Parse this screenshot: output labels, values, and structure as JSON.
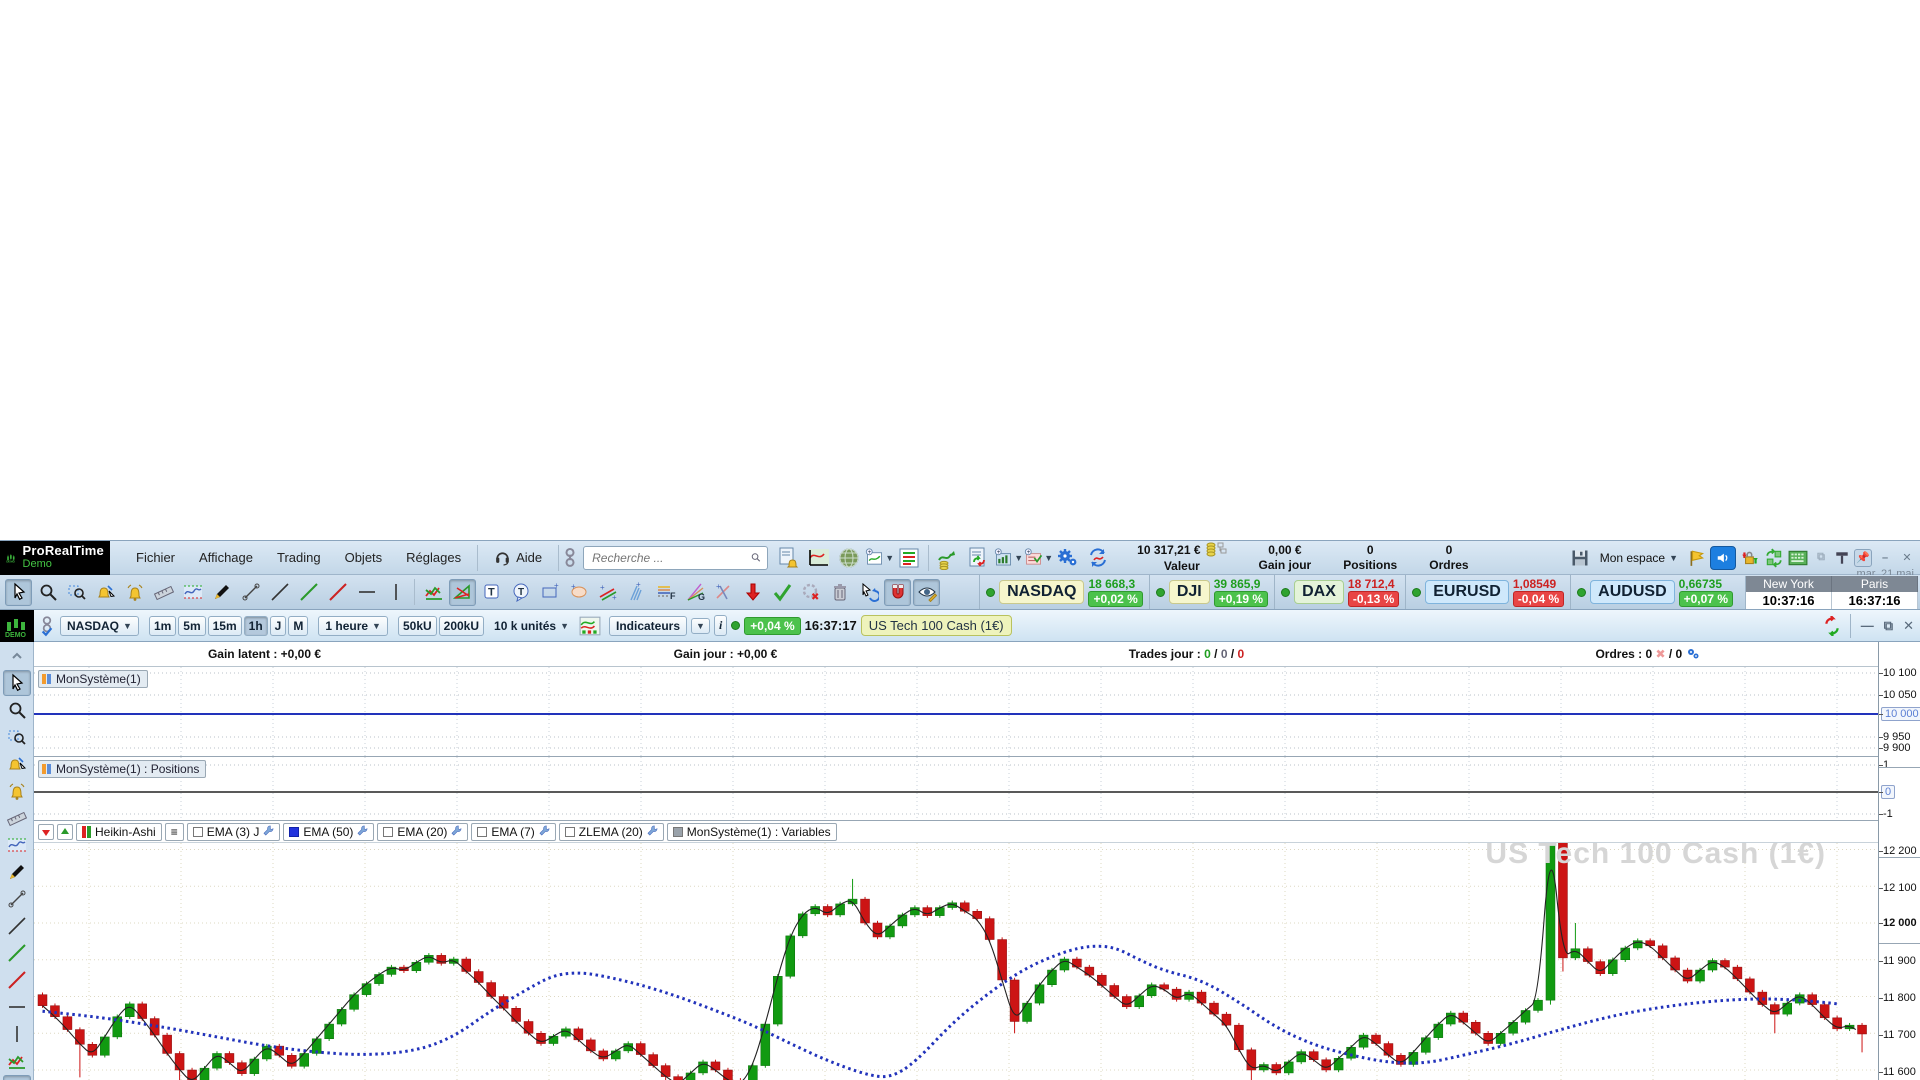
{
  "app": {
    "brand": "ProRealTime",
    "brand_sub": "Demo",
    "demo_badge": "DEMO",
    "date_label": "mar. 21 mai"
  },
  "menubar": {
    "items": [
      "Fichier",
      "Affichage",
      "Trading",
      "Objets",
      "Réglages"
    ],
    "help_label": "Aide",
    "search_placeholder": "Recherche ...",
    "workspace_label": "Mon espace",
    "account": [
      {
        "value": "10 317,21 €",
        "label": "Valeur",
        "icon": "coins-icon"
      },
      {
        "value": "0,00 €",
        "label": "Gain jour"
      },
      {
        "value": "0",
        "label": "Positions"
      },
      {
        "value": "0",
        "label": "Ordres"
      }
    ]
  },
  "tickers": [
    {
      "name": "NASDAQ",
      "value": "18 668,3",
      "change": "+0,02 %",
      "direction": "up",
      "style": "idx"
    },
    {
      "name": "DJI",
      "value": "39 865,9",
      "change": "+0,19 %",
      "direction": "up",
      "style": "idx"
    },
    {
      "name": "DAX",
      "value": "18 712,4",
      "change": "-0,13 %",
      "direction": "down",
      "style": "dax"
    },
    {
      "name": "EURUSD",
      "value": "1,08549",
      "change": "-0,04 %",
      "direction": "down",
      "style": "fx"
    },
    {
      "name": "AUDUSD",
      "value": "0,66735",
      "change": "+0,07 %",
      "direction": "up",
      "style": "fx"
    }
  ],
  "clocks": [
    {
      "city": "New York",
      "time": "10:37:16"
    },
    {
      "city": "Paris",
      "time": "16:37:16"
    }
  ],
  "chart_toolbar": {
    "symbol": "NASDAQ",
    "timeframes": [
      "1m",
      "5m",
      "15m",
      "1h",
      "J",
      "M"
    ],
    "selected_timeframe": "1h",
    "period_label": "1 heure",
    "unit_buttons": [
      "50kU",
      "200kU"
    ],
    "units_label": "10 k unités",
    "indicators_label": "Indicateurs",
    "change_badge": "+0,04 %",
    "time": "16:37:17",
    "instrument": "US Tech 100 Cash (1€)"
  },
  "status_row": {
    "gain_latent": "Gain latent : +0,00 €",
    "gain_jour": "Gain jour : +0,00 €",
    "trades_label": "Trades jour : ",
    "trades_values": [
      "0",
      "0",
      "0"
    ],
    "orders_label": "Ordres : ",
    "orders_open": "0",
    "orders_slash": "/ 0"
  },
  "panels": {
    "system_label": "MonSystème(1)",
    "positions_label": "MonSystème(1) : Positions",
    "system_axis": [
      {
        "t": "10 100",
        "y": 31
      },
      {
        "t": "10 050",
        "y": 53
      },
      {
        "t": "10 000",
        "y": 72,
        "boxed": true
      },
      {
        "t": "9 950",
        "y": 95
      },
      {
        "t": "9 900",
        "y": 106
      }
    ],
    "positions_axis": [
      {
        "t": "1",
        "y": 123
      },
      {
        "t": "0",
        "y": 150,
        "boxed": true
      },
      {
        "t": "-1",
        "y": 172
      }
    ],
    "system_line_value": 10000,
    "positions_line_value": 0
  },
  "legend": {
    "buttons": [
      "scroll-left-red",
      "scroll-right-green"
    ],
    "items": [
      {
        "label": "Heikin-Ashi",
        "icon": "ha-bars"
      },
      {
        "label": "",
        "icon": "list"
      },
      {
        "label": "EMA (3) J",
        "icon": "checkbox-empty",
        "wrench": true
      },
      {
        "label": "EMA (50)",
        "icon": "checkbox-blue",
        "wrench": true
      },
      {
        "label": "EMA (20)",
        "icon": "checkbox-empty",
        "wrench": true
      },
      {
        "label": "EMA (7)",
        "icon": "checkbox-empty",
        "wrench": true
      },
      {
        "label": "ZLEMA (20)",
        "icon": "checkbox-empty",
        "wrench": true
      },
      {
        "label": "MonSystème(1) : Variables",
        "icon": "checkbox-gray",
        "wrench": false
      }
    ]
  },
  "chart_data": {
    "type": "candlestick-heikin-ashi",
    "title_watermark": "US Tech 100 Cash (1€)",
    "y_axis_ticks": [
      "12 200",
      "12 100",
      "12 000",
      "11 900",
      "11 800",
      "11 700",
      "11 600"
    ],
    "ylim": [
      11570,
      12215
    ],
    "grid": true,
    "first_open": 11805,
    "closes": [
      11775,
      11745,
      11710,
      11670,
      11640,
      11690,
      11745,
      11780,
      11740,
      11695,
      11645,
      11600,
      11565,
      11605,
      11645,
      11620,
      11590,
      11630,
      11665,
      11640,
      11610,
      11645,
      11685,
      11725,
      11765,
      11805,
      11835,
      11860,
      11880,
      11870,
      11893,
      11912,
      11890,
      11902,
      11868,
      11838,
      11800,
      11768,
      11732,
      11700,
      11672,
      11692,
      11712,
      11682,
      11652,
      11630,
      11652,
      11672,
      11642,
      11612,
      11582,
      11560,
      11592,
      11622,
      11600,
      11572,
      11558,
      11612,
      11725,
      11855,
      11965,
      12025,
      12045,
      12022,
      12052,
      12065,
      12000,
      11962,
      11992,
      12022,
      12042,
      12020,
      12042,
      12055,
      12032,
      12012,
      11955,
      11845,
      11732,
      11782,
      11832,
      11872,
      11902,
      11880,
      11858,
      11830,
      11800,
      11772,
      11802,
      11832,
      11820,
      11792,
      11812,
      11782,
      11752,
      11722,
      11655,
      11600,
      11615,
      11592,
      11622,
      11650,
      11628,
      11600,
      11632,
      11662,
      11695,
      11672,
      11640,
      11615,
      11648,
      11688,
      11725,
      11755,
      11730,
      11700,
      11672,
      11700,
      11730,
      11762,
      11790,
      12240,
      11905,
      11930,
      11895,
      11862,
      11900,
      11932,
      11952,
      11938,
      11905,
      11872,
      11842,
      11872,
      11898,
      11880,
      11848,
      11812,
      11778,
      11752,
      11782,
      11805,
      11778,
      11742,
      11712,
      11722,
      11698
    ],
    "wick_overrides": {
      "3": {
        "low": 11580
      },
      "11": {
        "low": 11520
      },
      "50": {
        "low": 11520
      },
      "65": {
        "high": 12120
      },
      "78": {
        "low": 11700
      },
      "97": {
        "low": 11560
      },
      "121": {
        "high": 12252,
        "low": 11778
      },
      "122": {
        "low": 11868
      },
      "123": {
        "high": 12000
      },
      "139": {
        "low": 11700
      },
      "146": {
        "low": 11648
      }
    },
    "series": [
      {
        "name": "EMA (3)",
        "style": "solid-black",
        "derived_from": "closes"
      },
      {
        "name": "EMA (50)",
        "style": "dotted-blue",
        "points": [
          [
            0,
            11760
          ],
          [
            5,
            11742
          ],
          [
            10,
            11715
          ],
          [
            14,
            11690
          ],
          [
            18,
            11665
          ],
          [
            22,
            11648
          ],
          [
            26,
            11640
          ],
          [
            30,
            11652
          ],
          [
            33,
            11690
          ],
          [
            36,
            11762
          ],
          [
            39,
            11822
          ],
          [
            41,
            11858
          ],
          [
            43,
            11866
          ],
          [
            45,
            11856
          ],
          [
            48,
            11832
          ],
          [
            51,
            11800
          ],
          [
            54,
            11762
          ],
          [
            57,
            11722
          ],
          [
            60,
            11672
          ],
          [
            63,
            11625
          ],
          [
            66,
            11588
          ],
          [
            68,
            11578
          ],
          [
            70,
            11620
          ],
          [
            73,
            11728
          ],
          [
            76,
            11812
          ],
          [
            79,
            11880
          ],
          [
            82,
            11922
          ],
          [
            84,
            11938
          ],
          [
            86,
            11935
          ],
          [
            88,
            11900
          ],
          [
            90,
            11870
          ],
          [
            93,
            11845
          ],
          [
            96,
            11785
          ],
          [
            99,
            11715
          ],
          [
            102,
            11668
          ],
          [
            105,
            11640
          ],
          [
            108,
            11620
          ],
          [
            111,
            11618
          ],
          [
            114,
            11640
          ],
          [
            118,
            11672
          ],
          [
            122,
            11712
          ],
          [
            126,
            11748
          ],
          [
            130,
            11772
          ],
          [
            134,
            11788
          ],
          [
            138,
            11795
          ],
          [
            142,
            11788
          ],
          [
            146,
            11772
          ]
        ]
      }
    ]
  },
  "colors": {
    "candle_up": "#119a11",
    "candle_down": "#cc1414",
    "ema50_blue": "#2233bb",
    "ema3_black": "#222222",
    "badge_up_bg": "#4cc24c",
    "badge_down_bg": "#e84545",
    "value_up": "#1f9e1f",
    "value_down": "#cc2222",
    "toolbar_bg": "#c3d7e8",
    "panel_line_blue": "#2233bb",
    "watermark": "#d6d6d6"
  },
  "sidebar_tools": [
    "collapse-up",
    "cursor",
    "zoom",
    "zoom-box",
    "alert-edit",
    "alert",
    "ruler",
    "chart-preview",
    "pencil",
    "segment",
    "line-black",
    "line-green",
    "line-red",
    "hline",
    "vline",
    "zigzag",
    "pattern",
    "text"
  ],
  "sidebar_selected": [
    "cursor",
    "pattern"
  ],
  "toolbar_tools": [
    "cursor",
    "zoom",
    "zoom-box",
    "alert-edit",
    "alert",
    "ruler",
    "chart-preview",
    "pencil",
    "segment",
    "line-black",
    "line-green",
    "line-red",
    "hline",
    "vline",
    "zigzag",
    "pattern",
    "text",
    "text-bubble",
    "rect-shape",
    "ellipse-shape",
    "channel",
    "pitchfork",
    "fibonacci",
    "gann",
    "cross-lines",
    "arrow-down-red",
    "check-green",
    "eraser",
    "trash",
    "undo-cursor",
    "magnet",
    "eye-edit"
  ],
  "toolbar_selected": [
    "cursor",
    "pattern",
    "magnet",
    "eye-edit"
  ],
  "menu_icon_cluster": [
    "alert-doc",
    "curve-chart",
    "globe",
    "new-chart",
    "list-chart",
    "stats-chart",
    "doc-refresh",
    "new-indicator",
    "new-checklist",
    "gears",
    "refresh-chart"
  ],
  "right_icon_cluster": [
    "save",
    "workspace-dropdown",
    "flag",
    "speaker",
    "lock-arrows",
    "swap",
    "keyboard",
    "detach",
    "pin-bar",
    "pin",
    "minimize",
    "close"
  ]
}
